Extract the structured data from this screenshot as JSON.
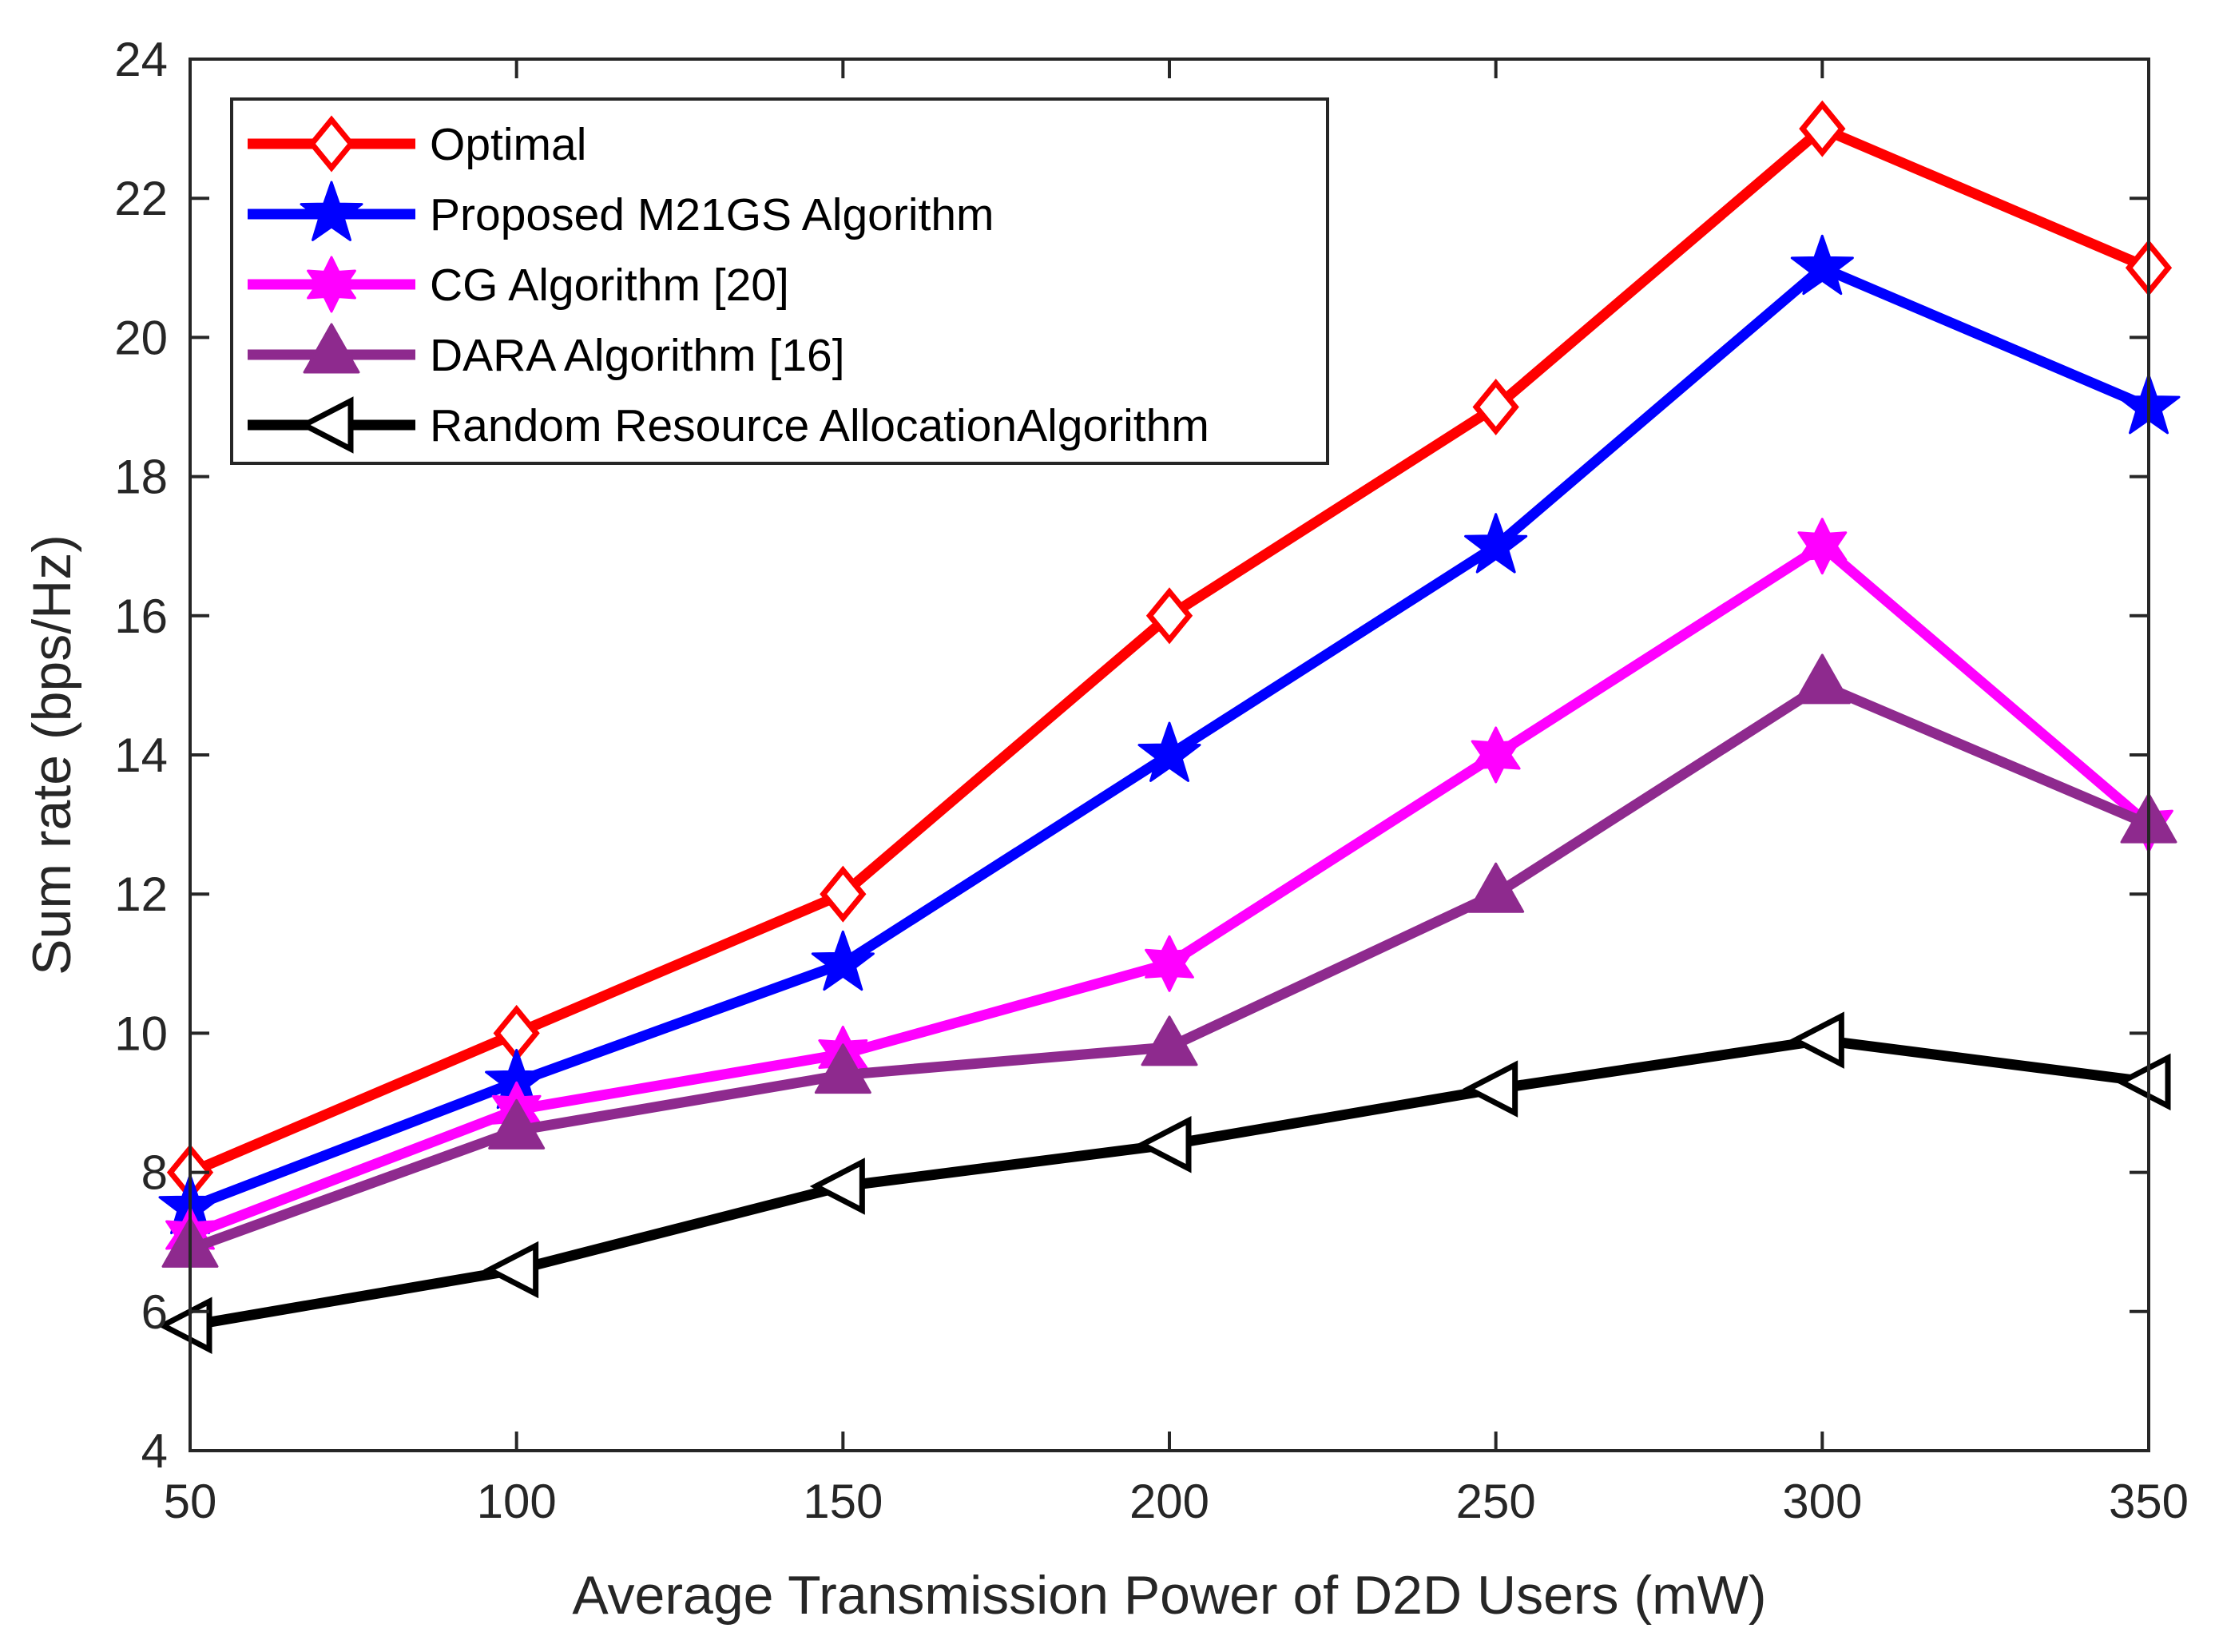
{
  "chart_data": {
    "type": "line",
    "title": "",
    "xlabel": "Average Transmission Power of D2D Users (mW)",
    "ylabel": "Sum rate (bps/Hz)",
    "x": [
      50,
      100,
      150,
      200,
      250,
      300,
      350
    ],
    "xlim": [
      50,
      350
    ],
    "ylim": [
      4,
      24
    ],
    "xticks": [
      "50",
      "100",
      "150",
      "200",
      "250",
      "300",
      "350"
    ],
    "yticks": [
      "4",
      "6",
      "8",
      "10",
      "12",
      "14",
      "16",
      "18",
      "20",
      "22",
      "24"
    ],
    "grid": false,
    "legend_position": "top-left",
    "series": [
      {
        "name": "Optimal",
        "color": "#ff0000",
        "marker": "diamond",
        "values": [
          8,
          10,
          12,
          16,
          19,
          23,
          21
        ]
      },
      {
        "name": "Proposed M21GS Algorithm",
        "color": "#0000ff",
        "marker": "star",
        "values": [
          7.5,
          9.3,
          11,
          14,
          17,
          21,
          19
        ]
      },
      {
        "name": "CG Algorithm [20]",
        "color": "#ff00ff",
        "marker": "hexagram",
        "values": [
          7.1,
          8.9,
          9.7,
          11,
          14,
          17,
          13
        ]
      },
      {
        "name": "DARA Algorithm [16]",
        "color": "#8e2a8e",
        "marker": "triangle",
        "values": [
          6.9,
          8.6,
          9.4,
          9.8,
          12,
          15,
          13
        ]
      },
      {
        "name": "Random Resource AllocationAlgorithm",
        "color": "#000000",
        "marker": "triangle-left",
        "values": [
          5.8,
          6.6,
          7.8,
          8.4,
          9.2,
          9.9,
          9.3
        ]
      }
    ]
  }
}
